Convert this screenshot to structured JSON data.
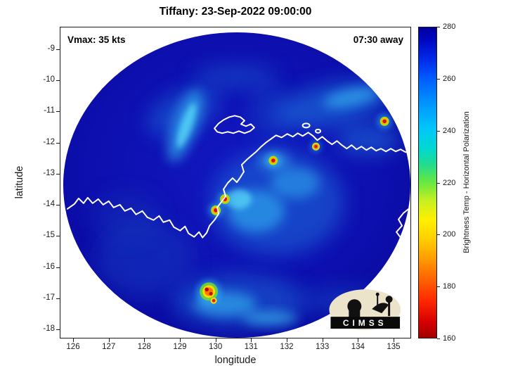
{
  "chart_data": {
    "type": "heatmap",
    "title": "Tiffany: 23-Sep-2022 09:00:00",
    "xlabel": "longitude",
    "ylabel": "latitude",
    "xlim": [
      125.6,
      135.5
    ],
    "ylim": [
      -18.3,
      -8.3
    ],
    "xticks": [
      126,
      127,
      128,
      129,
      130,
      131,
      132,
      133,
      134,
      135
    ],
    "yticks": [
      -9,
      -10,
      -11,
      -12,
      -13,
      -14,
      -15,
      -16,
      -17,
      -18
    ],
    "grid": false,
    "annotations": {
      "top_left": "Vmax: 35 kts",
      "top_right": "07:30 away"
    },
    "colorbar": {
      "label": "Brightness Temp - Horizontal Polarization",
      "min": 160,
      "max": 280,
      "ticks": [
        160,
        180,
        200,
        220,
        240,
        260,
        280
      ],
      "colormap": "jet-reversed (160 K = dark red, 200 K = yellow, 220 K = green, 240 K = cyan, 280 K = dark blue)",
      "position": "right"
    },
    "swath": {
      "shape": "circular microwave scan footprint centered near lon 130.6, lat -13.5",
      "background_value_K": 275,
      "land_outline_color": "#ffffff",
      "hotspots": [
        {
          "lon": 134.8,
          "lat": -11.3,
          "bt_K": 175,
          "note": "small deep-convection cell upper right"
        },
        {
          "lon": 132.8,
          "lat": -12.1,
          "bt_K": 185
        },
        {
          "lon": 131.6,
          "lat": -12.6,
          "bt_K": 175
        },
        {
          "lon": 130.3,
          "lat": -13.8,
          "bt_K": 172
        },
        {
          "lon": 130.0,
          "lat": -14.2,
          "bt_K": 172
        },
        {
          "lon": 129.8,
          "lat": -16.7,
          "bt_K": 165,
          "note": "strongest cluster, multiple red cores"
        },
        {
          "lon": 129.9,
          "lat": -17.0,
          "bt_K": 178
        }
      ],
      "cloud_bands_bt_K": "cyan/light-blue bands of 230-255 K over the upper-left diagonal, upper-right band, central convective region and the area south of center"
    }
  },
  "logo": {
    "text": "CIMSS"
  },
  "colors": {
    "background": "#ffffff",
    "swath_base": "#0d0fae",
    "axis": "#1a1a1a",
    "coastline": "#ffffff"
  }
}
